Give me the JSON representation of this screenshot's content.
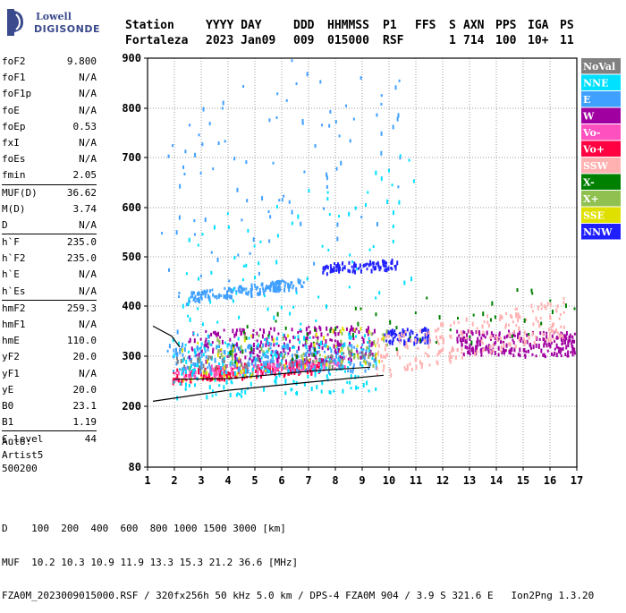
{
  "logo": {
    "line1": "Lowell",
    "line2": "DIGISONDE"
  },
  "header": {
    "row1": [
      "Station",
      "YYYY DAY",
      "DDD",
      "HHMMSS",
      "P1",
      "FFS",
      "S",
      "AXN",
      "PPS",
      "IGA",
      "PS"
    ],
    "row2": [
      "Fortaleza",
      "2023 Jan09",
      "009",
      "015000",
      "RSF",
      "",
      "1",
      "714",
      "100",
      "10+",
      "11"
    ]
  },
  "params": {
    "group1": [
      {
        "k": "foF2",
        "v": "9.800"
      },
      {
        "k": "foF1",
        "v": "N/A"
      },
      {
        "k": "foF1p",
        "v": "N/A"
      },
      {
        "k": "foE",
        "v": "N/A"
      },
      {
        "k": "foEp",
        "v": "0.53"
      },
      {
        "k": "fxI",
        "v": "N/A"
      },
      {
        "k": "foEs",
        "v": "N/A"
      },
      {
        "k": "fmin",
        "v": "2.05"
      }
    ],
    "group2": [
      {
        "k": "MUF(D)",
        "v": "36.62"
      },
      {
        "k": "M(D)",
        "v": "3.74"
      },
      {
        "k": "D",
        "v": "N/A"
      }
    ],
    "group3": [
      {
        "k": "h`F",
        "v": "235.0"
      },
      {
        "k": "h`F2",
        "v": "235.0"
      },
      {
        "k": "h`E",
        "v": "N/A"
      },
      {
        "k": "h`Es",
        "v": "N/A"
      }
    ],
    "group4": [
      {
        "k": "hmF2",
        "v": "259.3"
      },
      {
        "k": "hmF1",
        "v": "N/A"
      },
      {
        "k": "hmE",
        "v": "110.0"
      },
      {
        "k": "yF2",
        "v": "20.0"
      },
      {
        "k": "yF1",
        "v": "N/A"
      },
      {
        "k": "yE",
        "v": "20.0"
      },
      {
        "k": "B0",
        "v": "23.1"
      },
      {
        "k": "B1",
        "v": "1.19"
      }
    ],
    "group5": [
      {
        "k": "C-level",
        "v": "44"
      }
    ]
  },
  "auto": [
    "Auto:",
    "Artist5",
    "500200"
  ],
  "footer": {
    "line1": "D    100  200  400  600  800 1000 1500 3000 [km]",
    "line2": "MUF  10.2 10.3 10.9 11.9 13.3 15.3 21.2 36.6 [MHz]",
    "line3": "FZA0M_2023009015000.RSF / 320fx256h 50 kHz 5.0 km / DPS-4 FZA0M 904 / 3.9 S 321.6 E   Ion2Png 1.3.20"
  },
  "chart_data": {
    "type": "scatter",
    "xlim": [
      1,
      17
    ],
    "ylim": [
      80,
      900
    ],
    "x_ticks": [
      1,
      2,
      3,
      4,
      5,
      6,
      7,
      8,
      9,
      10,
      11,
      12,
      13,
      14,
      15,
      16,
      17
    ],
    "y_ticks": [
      80,
      200,
      300,
      400,
      500,
      600,
      700,
      800,
      900
    ],
    "grid": true,
    "legend_position": "right",
    "legend": [
      {
        "name": "NoVal",
        "color": "#808080"
      },
      {
        "name": "NNE",
        "color": "#00e0ff"
      },
      {
        "name": "E",
        "color": "#40a0ff"
      },
      {
        "name": "W",
        "color": "#a000a0"
      },
      {
        "name": "Vo-",
        "color": "#ff50c0"
      },
      {
        "name": "Vo+",
        "color": "#ff0040"
      },
      {
        "name": "SSW",
        "color": "#ffb0b0"
      },
      {
        "name": "X-",
        "color": "#008000"
      },
      {
        "name": "X+",
        "color": "#90c050"
      },
      {
        "name": "SSE",
        "color": "#e0e000"
      },
      {
        "name": "NNW",
        "color": "#2020ff"
      }
    ],
    "traces": [
      {
        "series": "Vo+",
        "color": "#ff0040",
        "x0": 1.9,
        "x1": 7.5,
        "y0": 262,
        "y1": 285,
        "dy": 14,
        "n": 220
      },
      {
        "series": "Vo-",
        "color": "#ff50c0",
        "x0": 2.0,
        "x1": 8.5,
        "y0": 268,
        "y1": 290,
        "dy": 12,
        "n": 140
      },
      {
        "series": "E",
        "color": "#40a0ff",
        "x0": 1.9,
        "x1": 9.5,
        "y0": 300,
        "y1": 300,
        "dy": 28,
        "n": 260
      },
      {
        "series": "E",
        "color": "#40a0ff",
        "x0": 2.5,
        "x1": 6.8,
        "y0": 420,
        "y1": 450,
        "dy": 10,
        "n": 160
      },
      {
        "series": "W",
        "color": "#a000a0",
        "x0": 2.5,
        "x1": 9.5,
        "y0": 320,
        "y1": 330,
        "dy": 35,
        "n": 240
      },
      {
        "series": "W",
        "color": "#a000a0",
        "x0": 12.5,
        "x1": 17,
        "y0": 330,
        "y1": 325,
        "dy": 25,
        "n": 240
      },
      {
        "series": "NNW",
        "color": "#2020ff",
        "x0": 7.5,
        "x1": 10.3,
        "y0": 478,
        "y1": 488,
        "dy": 10,
        "n": 90
      },
      {
        "series": "NNW",
        "color": "#2020ff",
        "x0": 9.8,
        "x1": 11.5,
        "y0": 340,
        "y1": 345,
        "dy": 14,
        "n": 70
      },
      {
        "series": "NNE",
        "color": "#00e0ff",
        "x0": 1.9,
        "x1": 9.5,
        "y0": 280,
        "y1": 290,
        "dy": 60,
        "n": 200
      },
      {
        "series": "SSW",
        "color": "#ffb0b0",
        "x0": 9.5,
        "x1": 16.5,
        "y0": 300,
        "y1": 380,
        "dy": 40,
        "n": 220
      },
      {
        "series": "X-",
        "color": "#008000",
        "x0": 4.0,
        "x1": 17,
        "y0": 330,
        "y1": 400,
        "dy": 50,
        "n": 60
      },
      {
        "series": "X+",
        "color": "#90c050",
        "x0": 2.5,
        "x1": 10.0,
        "y0": 300,
        "y1": 320,
        "dy": 40,
        "n": 50
      },
      {
        "series": "SSE",
        "color": "#e0e000",
        "x0": 2.2,
        "x1": 10.0,
        "y0": 290,
        "y1": 330,
        "dy": 40,
        "n": 60
      },
      {
        "series": "NoVal",
        "color": "#808080",
        "x0": 2.0,
        "x1": 9.5,
        "y0": 285,
        "y1": 300,
        "dy": 15,
        "n": 60
      },
      {
        "series": "E",
        "color": "#40a0ff",
        "x0": 1.5,
        "x1": 10.5,
        "y0": 500,
        "y1": 850,
        "dy": 250,
        "n": 120
      },
      {
        "series": "NNE",
        "color": "#00e0ff",
        "x0": 2.0,
        "x1": 11.0,
        "y0": 400,
        "y1": 600,
        "dy": 150,
        "n": 90
      }
    ],
    "trace_lines": [
      {
        "points": [
          [
            1.2,
            210
          ],
          [
            4,
            232
          ],
          [
            7,
            248
          ],
          [
            9.8,
            262
          ]
        ]
      },
      {
        "points": [
          [
            1.2,
            360
          ],
          [
            1.9,
            340
          ],
          [
            2.2,
            318
          ]
        ]
      },
      {
        "points": [
          [
            2.0,
            254
          ],
          [
            4,
            255
          ],
          [
            7,
            270
          ],
          [
            9.3,
            278
          ]
        ]
      }
    ]
  }
}
